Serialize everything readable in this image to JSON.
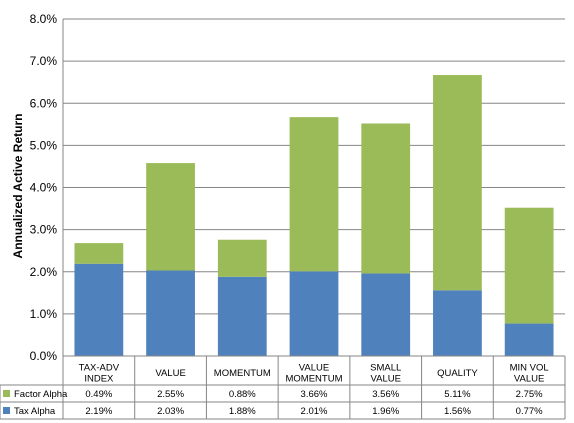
{
  "chart_data": {
    "type": "bar",
    "stacked": true,
    "ylabel": "Annualized Active Return",
    "ylim": [
      0,
      8
    ],
    "yticks": [
      "0.0%",
      "1.0%",
      "2.0%",
      "3.0%",
      "4.0%",
      "5.0%",
      "6.0%",
      "7.0%",
      "8.0%"
    ],
    "categories": [
      [
        "TAX-ADV",
        "INDEX"
      ],
      [
        "VALUE"
      ],
      [
        "MOMENTUM"
      ],
      [
        "VALUE",
        "MOMENTUM"
      ],
      [
        "SMALL",
        "VALUE"
      ],
      [
        "QUALITY"
      ],
      [
        "MIN VOL",
        "VALUE"
      ]
    ],
    "series": [
      {
        "name": "Tax Alpha",
        "color": "#4f81bd",
        "values": [
          2.19,
          2.03,
          1.88,
          2.01,
          1.96,
          1.56,
          0.77
        ],
        "labels": [
          "2.19%",
          "2.03%",
          "1.88%",
          "2.01%",
          "1.96%",
          "1.56%",
          "0.77%"
        ]
      },
      {
        "name": "Factor Alpha",
        "color": "#9bbb59",
        "values": [
          0.49,
          2.55,
          0.88,
          3.66,
          3.56,
          5.11,
          2.75
        ],
        "labels": [
          "0.49%",
          "2.55%",
          "0.88%",
          "3.66%",
          "3.56%",
          "5.11%",
          "2.75%"
        ]
      }
    ],
    "data_table": true,
    "grid": true,
    "gridline_color": "#868686"
  }
}
